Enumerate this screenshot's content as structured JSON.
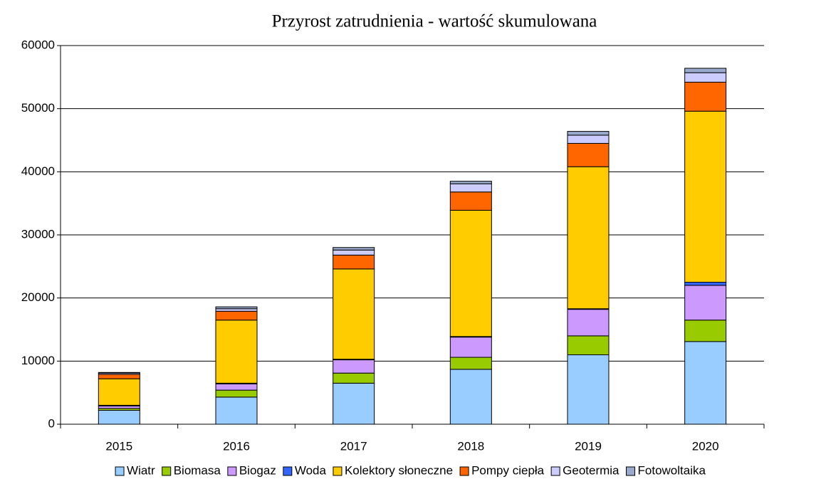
{
  "chart_data": {
    "type": "stacked_bar",
    "title": "Przyrost zatrudnienia - wartość skumulowana",
    "categories": [
      "2015",
      "2016",
      "2017",
      "2018",
      "2019",
      "2020"
    ],
    "series": [
      {
        "name": "Wiatr",
        "color": "#99ccff",
        "values": [
          2200,
          4300,
          6500,
          8700,
          11000,
          13100
        ]
      },
      {
        "name": "Biomasa",
        "color": "#99cc00",
        "values": [
          300,
          1100,
          1600,
          1900,
          3000,
          3400
        ]
      },
      {
        "name": "Biogaz",
        "color": "#cc99ff",
        "values": [
          400,
          1000,
          2100,
          3200,
          4200,
          5500
        ]
      },
      {
        "name": "Woda",
        "color": "#3366ff",
        "values": [
          100,
          100,
          100,
          100,
          100,
          500
        ]
      },
      {
        "name": "Kolektory słoneczne",
        "color": "#ffcc00",
        "values": [
          4200,
          10000,
          14300,
          20000,
          22500,
          27100
        ]
      },
      {
        "name": "Pompy ciepła",
        "color": "#ff6600",
        "values": [
          700,
          1400,
          2200,
          2900,
          3700,
          4600
        ]
      },
      {
        "name": "Geotermia",
        "color": "#ccccff",
        "values": [
          200,
          400,
          800,
          1300,
          1300,
          1500
        ]
      },
      {
        "name": "Fotowoltaika",
        "color": "#99aacc",
        "values": [
          100,
          300,
          400,
          400,
          600,
          700
        ]
      }
    ],
    "ylim": [
      0,
      60000
    ],
    "yticks": [
      0,
      10000,
      20000,
      30000,
      40000,
      50000,
      60000
    ],
    "grid": true
  }
}
